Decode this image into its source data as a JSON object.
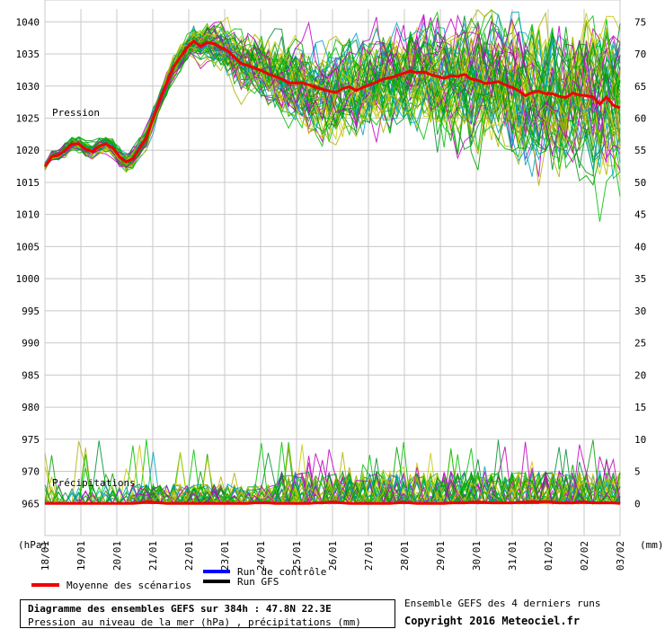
{
  "chart_data": {
    "type": "line",
    "title": "Diagramme des ensembles GEFS sur 384h : 47.8N 22.3E",
    "subtitle": "Pression au niveau de la mer (hPa) , précipitations (mm)",
    "left_axis_unit": "(hPa)",
    "right_axis_unit": "(mm)",
    "pressure_label": "Pression",
    "precip_label": "Précipitations",
    "left_ticks": [
      1040,
      1035,
      1030,
      1025,
      1020,
      1015,
      1010,
      1005,
      1000,
      995,
      990,
      985,
      980,
      975,
      970,
      965
    ],
    "right_ticks": [
      75,
      70,
      65,
      60,
      55,
      50,
      45,
      40,
      35,
      30,
      25,
      20,
      15,
      10,
      5,
      0
    ],
    "ylim_hpa": [
      960,
      1042
    ],
    "date_labels": [
      "18/01",
      "19/01",
      "20/01",
      "21/01",
      "22/01",
      "23/01",
      "24/01",
      "25/01",
      "26/01",
      "27/01",
      "28/01",
      "29/01",
      "30/01",
      "31/01",
      "01/02",
      "02/02",
      "03/02"
    ],
    "mean_pressure": [
      1017.5,
      1019,
      1019.2,
      1020,
      1021,
      1021,
      1020.2,
      1019.8,
      1020.6,
      1021,
      1020.4,
      1019,
      1018.2,
      1018.7,
      1020.4,
      1022,
      1025,
      1028,
      1030.5,
      1033,
      1034.5,
      1036,
      1037,
      1036.2,
      1036.8,
      1036.6,
      1036,
      1035.5,
      1034.5,
      1033.5,
      1033.2,
      1032.8,
      1032.4,
      1031.9,
      1031.5,
      1031.1,
      1030.5,
      1030.5,
      1030.5,
      1030.2,
      1029.8,
      1029.5,
      1029.2,
      1029,
      1029.6,
      1029.9,
      1029.3,
      1029.8,
      1030.2,
      1030.6,
      1031.1,
      1031.3,
      1031.6,
      1032,
      1032.3,
      1032.1,
      1032.2,
      1031.8,
      1031.5,
      1031.2,
      1031.6,
      1031.5,
      1031.8,
      1031.1,
      1030.9,
      1030.4,
      1030.5,
      1030.7,
      1030.2,
      1029.8,
      1029.3,
      1028.5,
      1029,
      1029.2,
      1028.8,
      1028.8,
      1028.4,
      1028.2,
      1028.9,
      1028.6,
      1028.5,
      1028.3,
      1027.2,
      1028.3,
      1027,
      1026.6
    ],
    "mean_precip": [
      0,
      0,
      0,
      0,
      0,
      0,
      0,
      0,
      0,
      0,
      0,
      0,
      0,
      0,
      0.1,
      0.3,
      0.2,
      0.1,
      0,
      0,
      0,
      0,
      0,
      0,
      0,
      0,
      0,
      0,
      0,
      0,
      0,
      0.1,
      0.1,
      0.1,
      0,
      0,
      0,
      0,
      0,
      0,
      0.1,
      0.1,
      0.2,
      0.2,
      0.1,
      0,
      0,
      0,
      0,
      0,
      0,
      0,
      0.1,
      0.2,
      0.1,
      0,
      0,
      0,
      0,
      0,
      0.1,
      0.1,
      0.1,
      0.2,
      0.2,
      0.2,
      0.1,
      0.1,
      0.1,
      0.1,
      0.2,
      0.2,
      0.3,
      0.2,
      0.3,
      0.2,
      0.1,
      0.1,
      0.1,
      0.2,
      0.2,
      0.1,
      0.1,
      0.1,
      0.1,
      0
    ],
    "ensemble_colors": [
      "#00a000",
      "#00c000",
      "#c8c800",
      "#c000c0",
      "#00a0c0",
      "#008c30",
      "#b0b000"
    ],
    "control_color": "#0000ff",
    "gfs_color": "#000000",
    "mean_color": "#ee0000",
    "grid": true,
    "legend": [
      {
        "label": "Run de contrôle",
        "color": "#0000ff"
      },
      {
        "label": "Run GFS",
        "color": "#000000"
      },
      {
        "label": "Moyenne des scénarios",
        "color": "#ee0000"
      }
    ]
  },
  "footer": {
    "credit_line1": "Ensemble GEFS des 4 derniers runs",
    "credit_line2": "Copyright 2016 Meteociel.fr"
  }
}
